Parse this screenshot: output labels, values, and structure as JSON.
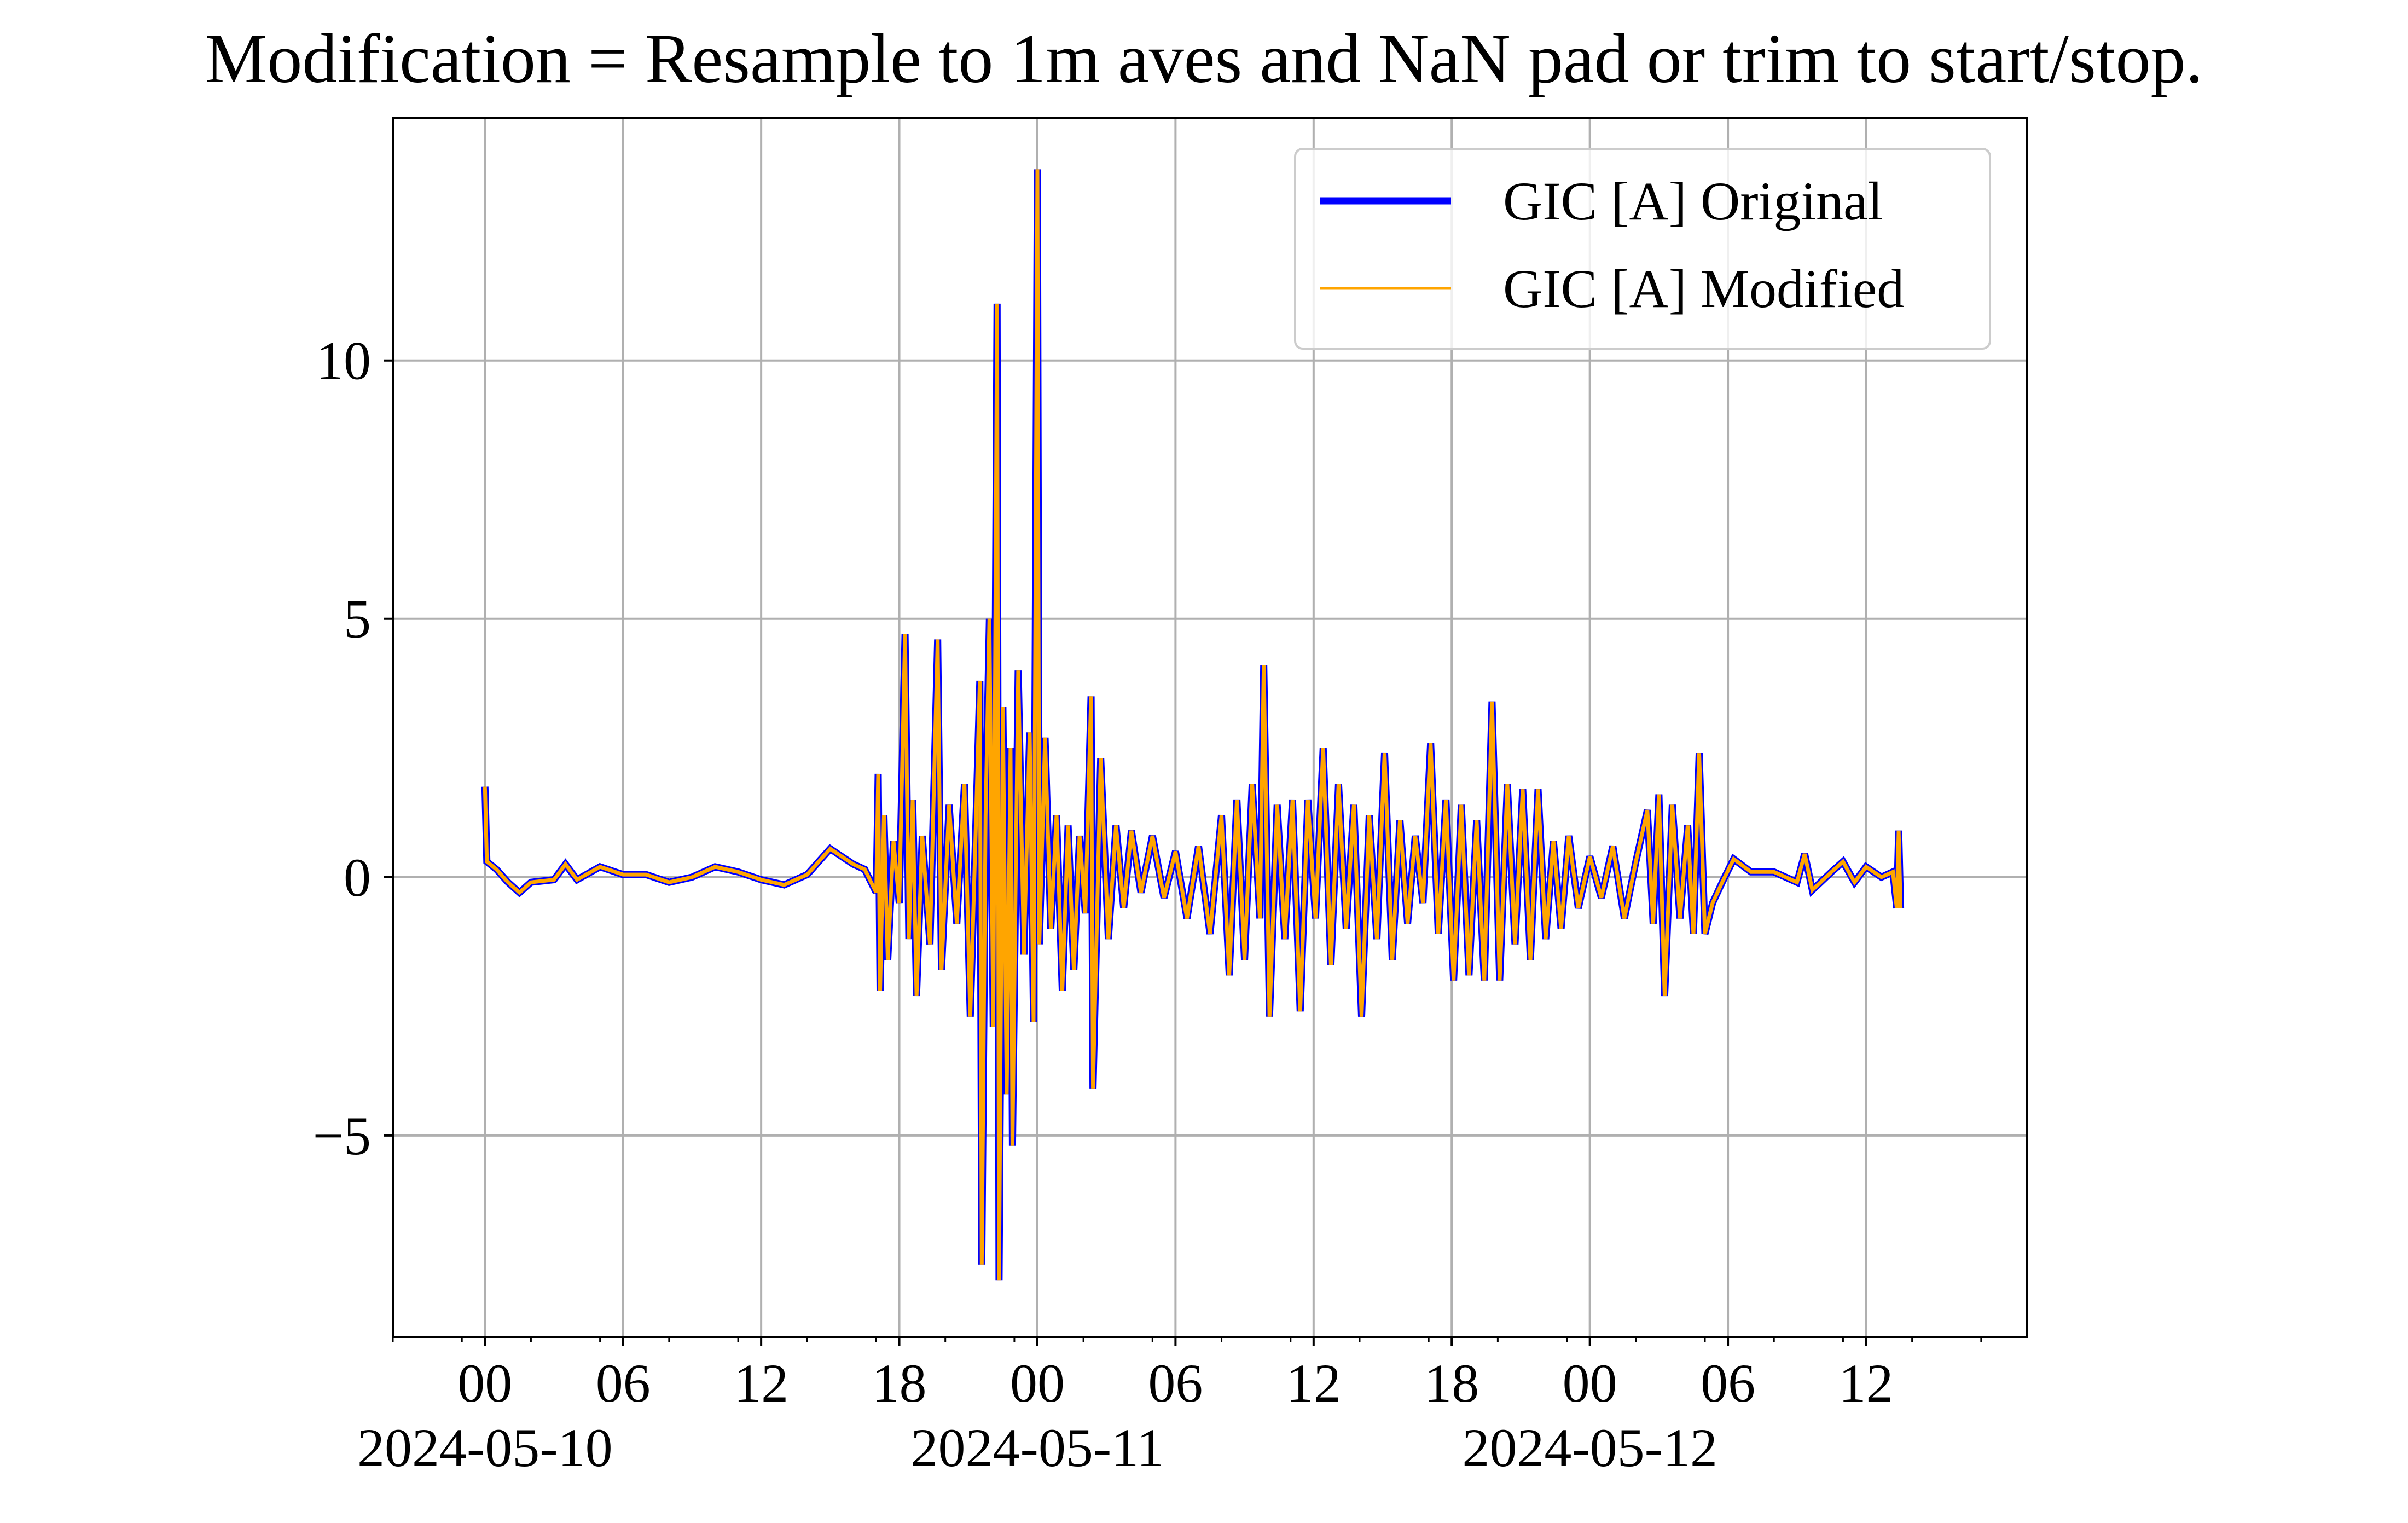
{
  "chart_data": {
    "type": "line",
    "title": "Modification = Resample to 1m aves and NaN pad or trim to start/stop.",
    "xlabel": "",
    "ylabel": "",
    "x_axis": {
      "kind": "datetime",
      "range": [
        "2024-05-09T20:00",
        "2024-05-12T19:00"
      ],
      "major_tick_labels": [
        {
          "time": "2024-05-10T00:00",
          "label": "00",
          "date": "2024-05-10"
        },
        {
          "time": "2024-05-10T06:00",
          "label": "06",
          "date": ""
        },
        {
          "time": "2024-05-10T12:00",
          "label": "12",
          "date": ""
        },
        {
          "time": "2024-05-10T18:00",
          "label": "18",
          "date": ""
        },
        {
          "time": "2024-05-11T00:00",
          "label": "00",
          "date": "2024-05-11"
        },
        {
          "time": "2024-05-11T06:00",
          "label": "06",
          "date": ""
        },
        {
          "time": "2024-05-11T12:00",
          "label": "12",
          "date": ""
        },
        {
          "time": "2024-05-11T18:00",
          "label": "18",
          "date": ""
        },
        {
          "time": "2024-05-12T00:00",
          "label": "00",
          "date": "2024-05-12"
        },
        {
          "time": "2024-05-12T06:00",
          "label": "06",
          "date": ""
        },
        {
          "time": "2024-05-12T12:00",
          "label": "12",
          "date": ""
        }
      ],
      "minor_tick_every_hours": 3
    },
    "y_axis": {
      "range": [
        -8.9,
        14.7
      ],
      "ticks": [
        -5,
        0,
        5,
        10
      ],
      "tick_labels": [
        "−5",
        "0",
        "5",
        "10"
      ]
    },
    "grid": true,
    "legend": {
      "position": "top-right"
    },
    "series": [
      {
        "name": "GIC [A] Original",
        "color": "#0000ff",
        "points": [
          [
            "2024-05-10T00:00",
            1.75
          ],
          [
            "2024-05-10T00:05",
            0.3
          ],
          [
            "2024-05-10T00:30",
            0.15
          ],
          [
            "2024-05-10T01:00",
            -0.1
          ],
          [
            "2024-05-10T01:30",
            -0.3
          ],
          [
            "2024-05-10T02:00",
            -0.1
          ],
          [
            "2024-05-10T03:00",
            -0.05
          ],
          [
            "2024-05-10T03:30",
            0.25
          ],
          [
            "2024-05-10T04:00",
            -0.05
          ],
          [
            "2024-05-10T05:00",
            0.2
          ],
          [
            "2024-05-10T06:00",
            0.05
          ],
          [
            "2024-05-10T07:00",
            0.05
          ],
          [
            "2024-05-10T08:00",
            -0.1
          ],
          [
            "2024-05-10T09:00",
            0.0
          ],
          [
            "2024-05-10T10:00",
            0.2
          ],
          [
            "2024-05-10T11:00",
            0.1
          ],
          [
            "2024-05-10T12:00",
            -0.05
          ],
          [
            "2024-05-10T13:00",
            -0.15
          ],
          [
            "2024-05-10T14:00",
            0.05
          ],
          [
            "2024-05-10T15:00",
            0.55
          ],
          [
            "2024-05-10T16:00",
            0.25
          ],
          [
            "2024-05-10T16:30",
            0.15
          ],
          [
            "2024-05-10T17:00",
            -0.3
          ],
          [
            "2024-05-10T17:05",
            2.0
          ],
          [
            "2024-05-10T17:10",
            -2.2
          ],
          [
            "2024-05-10T17:20",
            1.2
          ],
          [
            "2024-05-10T17:30",
            -1.6
          ],
          [
            "2024-05-10T17:45",
            0.7
          ],
          [
            "2024-05-10T18:00",
            -0.5
          ],
          [
            "2024-05-10T18:15",
            4.7
          ],
          [
            "2024-05-10T18:25",
            -1.2
          ],
          [
            "2024-05-10T18:35",
            1.5
          ],
          [
            "2024-05-10T18:45",
            -2.3
          ],
          [
            "2024-05-10T19:00",
            0.8
          ],
          [
            "2024-05-10T19:20",
            -1.3
          ],
          [
            "2024-05-10T19:40",
            4.6
          ],
          [
            "2024-05-10T19:50",
            -1.8
          ],
          [
            "2024-05-10T20:10",
            1.4
          ],
          [
            "2024-05-10T20:30",
            -0.9
          ],
          [
            "2024-05-10T20:50",
            1.8
          ],
          [
            "2024-05-10T21:05",
            -2.7
          ],
          [
            "2024-05-10T21:20",
            1.1
          ],
          [
            "2024-05-10T21:30",
            3.8
          ],
          [
            "2024-05-10T21:35",
            -7.5
          ],
          [
            "2024-05-10T21:45",
            1.2
          ],
          [
            "2024-05-10T21:55",
            5.0
          ],
          [
            "2024-05-10T22:05",
            -2.9
          ],
          [
            "2024-05-10T22:15",
            11.1
          ],
          [
            "2024-05-10T22:20",
            -7.8
          ],
          [
            "2024-05-10T22:30",
            3.3
          ],
          [
            "2024-05-10T22:40",
            -4.2
          ],
          [
            "2024-05-10T22:50",
            2.5
          ],
          [
            "2024-05-10T22:55",
            -5.2
          ],
          [
            "2024-05-10T23:10",
            4.0
          ],
          [
            "2024-05-10T23:25",
            -1.5
          ],
          [
            "2024-05-10T23:40",
            2.8
          ],
          [
            "2024-05-10T23:50",
            -2.8
          ],
          [
            "2024-05-11T00:00",
            13.7
          ],
          [
            "2024-05-11T00:05",
            -1.3
          ],
          [
            "2024-05-11T00:20",
            2.7
          ],
          [
            "2024-05-11T00:35",
            -1.0
          ],
          [
            "2024-05-11T00:50",
            1.2
          ],
          [
            "2024-05-11T01:05",
            -2.2
          ],
          [
            "2024-05-11T01:20",
            1.0
          ],
          [
            "2024-05-11T01:35",
            -1.8
          ],
          [
            "2024-05-11T01:50",
            0.8
          ],
          [
            "2024-05-11T02:05",
            -0.7
          ],
          [
            "2024-05-11T02:20",
            3.5
          ],
          [
            "2024-05-11T02:25",
            -4.1
          ],
          [
            "2024-05-11T02:45",
            2.3
          ],
          [
            "2024-05-11T03:05",
            -1.2
          ],
          [
            "2024-05-11T03:25",
            1.0
          ],
          [
            "2024-05-11T03:45",
            -0.6
          ],
          [
            "2024-05-11T04:05",
            0.9
          ],
          [
            "2024-05-11T04:30",
            -0.3
          ],
          [
            "2024-05-11T05:00",
            0.8
          ],
          [
            "2024-05-11T05:30",
            -0.4
          ],
          [
            "2024-05-11T06:00",
            0.5
          ],
          [
            "2024-05-11T06:30",
            -0.8
          ],
          [
            "2024-05-11T07:00",
            0.6
          ],
          [
            "2024-05-11T07:30",
            -1.1
          ],
          [
            "2024-05-11T08:00",
            1.2
          ],
          [
            "2024-05-11T08:20",
            -1.9
          ],
          [
            "2024-05-11T08:40",
            1.5
          ],
          [
            "2024-05-11T09:00",
            -1.6
          ],
          [
            "2024-05-11T09:20",
            1.8
          ],
          [
            "2024-05-11T09:40",
            -0.8
          ],
          [
            "2024-05-11T09:50",
            4.1
          ],
          [
            "2024-05-11T10:05",
            -2.7
          ],
          [
            "2024-05-11T10:25",
            1.4
          ],
          [
            "2024-05-11T10:45",
            -1.2
          ],
          [
            "2024-05-11T11:05",
            1.5
          ],
          [
            "2024-05-11T11:25",
            -2.6
          ],
          [
            "2024-05-11T11:45",
            1.5
          ],
          [
            "2024-05-11T12:05",
            -0.8
          ],
          [
            "2024-05-11T12:25",
            2.5
          ],
          [
            "2024-05-11T12:45",
            -1.7
          ],
          [
            "2024-05-11T13:05",
            1.8
          ],
          [
            "2024-05-11T13:25",
            -1.0
          ],
          [
            "2024-05-11T13:45",
            1.4
          ],
          [
            "2024-05-11T14:05",
            -2.7
          ],
          [
            "2024-05-11T14:25",
            1.2
          ],
          [
            "2024-05-11T14:45",
            -1.2
          ],
          [
            "2024-05-11T15:05",
            2.4
          ],
          [
            "2024-05-11T15:25",
            -1.6
          ],
          [
            "2024-05-11T15:45",
            1.1
          ],
          [
            "2024-05-11T16:05",
            -0.9
          ],
          [
            "2024-05-11T16:25",
            0.8
          ],
          [
            "2024-05-11T16:45",
            -0.5
          ],
          [
            "2024-05-11T17:05",
            2.6
          ],
          [
            "2024-05-11T17:25",
            -1.1
          ],
          [
            "2024-05-11T17:45",
            1.5
          ],
          [
            "2024-05-11T18:05",
            -2.0
          ],
          [
            "2024-05-11T18:25",
            1.4
          ],
          [
            "2024-05-11T18:45",
            -1.9
          ],
          [
            "2024-05-11T19:05",
            1.1
          ],
          [
            "2024-05-11T19:25",
            -2.0
          ],
          [
            "2024-05-11T19:45",
            3.4
          ],
          [
            "2024-05-11T20:05",
            -2.0
          ],
          [
            "2024-05-11T20:25",
            1.8
          ],
          [
            "2024-05-11T20:45",
            -1.3
          ],
          [
            "2024-05-11T21:05",
            1.7
          ],
          [
            "2024-05-11T21:25",
            -1.6
          ],
          [
            "2024-05-11T21:45",
            1.7
          ],
          [
            "2024-05-11T22:05",
            -1.2
          ],
          [
            "2024-05-11T22:25",
            0.7
          ],
          [
            "2024-05-11T22:45",
            -1.0
          ],
          [
            "2024-05-11T23:05",
            0.8
          ],
          [
            "2024-05-11T23:30",
            -0.6
          ],
          [
            "2024-05-12T00:00",
            0.4
          ],
          [
            "2024-05-12T00:30",
            -0.4
          ],
          [
            "2024-05-12T01:00",
            0.6
          ],
          [
            "2024-05-12T01:30",
            -0.8
          ],
          [
            "2024-05-12T02:00",
            0.3
          ],
          [
            "2024-05-12T02:30",
            1.3
          ],
          [
            "2024-05-12T02:45",
            -0.9
          ],
          [
            "2024-05-12T03:00",
            1.6
          ],
          [
            "2024-05-12T03:15",
            -2.3
          ],
          [
            "2024-05-12T03:35",
            1.4
          ],
          [
            "2024-05-12T03:55",
            -0.8
          ],
          [
            "2024-05-12T04:15",
            1.0
          ],
          [
            "2024-05-12T04:30",
            -1.1
          ],
          [
            "2024-05-12T04:45",
            2.4
          ],
          [
            "2024-05-12T05:00",
            -1.1
          ],
          [
            "2024-05-12T05:20",
            -0.5
          ],
          [
            "2024-05-12T05:45",
            -0.1
          ],
          [
            "2024-05-12T06:15",
            0.35
          ],
          [
            "2024-05-12T07:00",
            0.1
          ],
          [
            "2024-05-12T08:00",
            0.1
          ],
          [
            "2024-05-12T09:00",
            -0.1
          ],
          [
            "2024-05-12T09:20",
            0.45
          ],
          [
            "2024-05-12T09:40",
            -0.25
          ],
          [
            "2024-05-12T10:30",
            0.1
          ],
          [
            "2024-05-12T11:00",
            0.3
          ],
          [
            "2024-05-12T11:30",
            -0.1
          ],
          [
            "2024-05-12T12:00",
            0.2
          ],
          [
            "2024-05-12T12:40",
            0.0
          ],
          [
            "2024-05-12T13:10",
            0.1
          ],
          [
            "2024-05-12T13:20",
            -0.6
          ],
          [
            "2024-05-12T13:25",
            0.9
          ],
          [
            "2024-05-12T13:30",
            -0.6
          ]
        ]
      },
      {
        "name": "GIC [A] Modified",
        "color": "#ffa500",
        "same_as": "GIC [A] Original"
      }
    ]
  }
}
